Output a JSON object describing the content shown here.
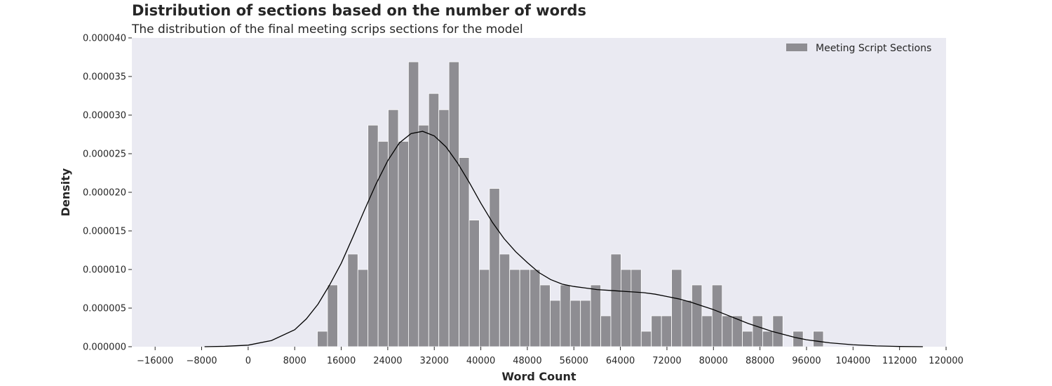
{
  "chart_data": {
    "type": "bar",
    "title": "Distribution of sections based on the number of words",
    "subtitle": "The distribution of the final meeting scrips sections for the model",
    "xlabel": "Word Count",
    "ylabel": "Density",
    "xlim": [
      -20000,
      120000
    ],
    "ylim": [
      0,
      4e-05
    ],
    "x_ticks": [
      -16000,
      -8000,
      0,
      8000,
      16000,
      24000,
      32000,
      40000,
      48000,
      56000,
      64000,
      72000,
      80000,
      88000,
      96000,
      104000,
      112000,
      120000
    ],
    "x_tick_labels": [
      "−16000",
      "−8000",
      "0",
      "8000",
      "16000",
      "24000",
      "32000",
      "40000",
      "48000",
      "56000",
      "64000",
      "72000",
      "80000",
      "88000",
      "96000",
      "104000",
      "112000",
      "120000"
    ],
    "y_ticks": [
      0,
      5e-06,
      1e-05,
      1.5e-05,
      2e-05,
      2.5e-05,
      3e-05,
      3.5e-05,
      4e-05
    ],
    "y_tick_labels": [
      "0.000000",
      "0.000005",
      "0.000010",
      "0.000015",
      "0.000020",
      "0.000025",
      "0.000030",
      "0.000035",
      "0.000040"
    ],
    "legend": {
      "position": "top-right",
      "entries": [
        {
          "label": "Meeting Script Sections",
          "color": "#8e8d92"
        }
      ]
    },
    "grid": false,
    "colors": {
      "background": "#eaeaf2",
      "bar": "#8e8d92",
      "bar_edge": "#ffffff",
      "kde_line": "#000000"
    },
    "histogram": {
      "bins": [
        {
          "x0": 11900,
          "x1": 13640,
          "density": 2e-06
        },
        {
          "x0": 13640,
          "x1": 15380,
          "density": 8e-06
        },
        {
          "x0": 17120,
          "x1": 18860,
          "density": 1.2e-05
        },
        {
          "x0": 18860,
          "x1": 20600,
          "density": 1e-05
        },
        {
          "x0": 20600,
          "x1": 22340,
          "density": 2.87e-05
        },
        {
          "x0": 22340,
          "x1": 24080,
          "density": 2.66e-05
        },
        {
          "x0": 24080,
          "x1": 25820,
          "density": 3.07e-05
        },
        {
          "x0": 25820,
          "x1": 27560,
          "density": 2.66e-05
        },
        {
          "x0": 27560,
          "x1": 29300,
          "density": 3.69e-05
        },
        {
          "x0": 29300,
          "x1": 31040,
          "density": 2.87e-05
        },
        {
          "x0": 31040,
          "x1": 32780,
          "density": 3.28e-05
        },
        {
          "x0": 32780,
          "x1": 34520,
          "density": 3.07e-05
        },
        {
          "x0": 34520,
          "x1": 36260,
          "density": 3.69e-05
        },
        {
          "x0": 36260,
          "x1": 38000,
          "density": 2.45e-05
        },
        {
          "x0": 38000,
          "x1": 39740,
          "density": 1.64e-05
        },
        {
          "x0": 39740,
          "x1": 41480,
          "density": 1e-05
        },
        {
          "x0": 41480,
          "x1": 43220,
          "density": 2.05e-05
        },
        {
          "x0": 43220,
          "x1": 44960,
          "density": 1.2e-05
        },
        {
          "x0": 44960,
          "x1": 46700,
          "density": 1e-05
        },
        {
          "x0": 46700,
          "x1": 48440,
          "density": 1e-05
        },
        {
          "x0": 48440,
          "x1": 50180,
          "density": 1e-05
        },
        {
          "x0": 50180,
          "x1": 51920,
          "density": 8e-06
        },
        {
          "x0": 51920,
          "x1": 53660,
          "density": 6e-06
        },
        {
          "x0": 53660,
          "x1": 55400,
          "density": 8e-06
        },
        {
          "x0": 55400,
          "x1": 57140,
          "density": 6e-06
        },
        {
          "x0": 57140,
          "x1": 58880,
          "density": 6e-06
        },
        {
          "x0": 58880,
          "x1": 60620,
          "density": 8e-06
        },
        {
          "x0": 60620,
          "x1": 62360,
          "density": 4e-06
        },
        {
          "x0": 62360,
          "x1": 64100,
          "density": 1.2e-05
        },
        {
          "x0": 64100,
          "x1": 65840,
          "density": 1e-05
        },
        {
          "x0": 65840,
          "x1": 67580,
          "density": 1e-05
        },
        {
          "x0": 67580,
          "x1": 69320,
          "density": 2e-06
        },
        {
          "x0": 69320,
          "x1": 71060,
          "density": 4e-06
        },
        {
          "x0": 71060,
          "x1": 72800,
          "density": 4e-06
        },
        {
          "x0": 72800,
          "x1": 74540,
          "density": 1e-05
        },
        {
          "x0": 74540,
          "x1": 76280,
          "density": 6e-06
        },
        {
          "x0": 76280,
          "x1": 78020,
          "density": 8e-06
        },
        {
          "x0": 78020,
          "x1": 79760,
          "density": 4e-06
        },
        {
          "x0": 79760,
          "x1": 81500,
          "density": 8e-06
        },
        {
          "x0": 81500,
          "x1": 83240,
          "density": 4e-06
        },
        {
          "x0": 83240,
          "x1": 84980,
          "density": 4e-06
        },
        {
          "x0": 84980,
          "x1": 86720,
          "density": 2e-06
        },
        {
          "x0": 86720,
          "x1": 88460,
          "density": 4e-06
        },
        {
          "x0": 88460,
          "x1": 90200,
          "density": 2e-06
        },
        {
          "x0": 90200,
          "x1": 91940,
          "density": 4e-06
        },
        {
          "x0": 93680,
          "x1": 95420,
          "density": 2e-06
        },
        {
          "x0": 97160,
          "x1": 98900,
          "density": 2e-06
        }
      ]
    },
    "kde": {
      "x": [
        -7500,
        -4000,
        0,
        4000,
        8000,
        10000,
        12000,
        14000,
        16000,
        18000,
        20000,
        22000,
        24000,
        26000,
        28000,
        30000,
        32000,
        34000,
        36000,
        38000,
        40000,
        42000,
        44000,
        46000,
        48000,
        50000,
        52000,
        54000,
        56000,
        58000,
        60000,
        62000,
        64000,
        66000,
        68000,
        70000,
        72000,
        74000,
        76000,
        78000,
        80000,
        82000,
        84000,
        86000,
        88000,
        90000,
        92000,
        94000,
        96000,
        98000,
        100000,
        104000,
        108000,
        112000,
        116000
      ],
      "y": [
        0,
        5e-08,
        2e-07,
        8e-07,
        2.2e-06,
        3.6e-06,
        5.5e-06,
        8e-06,
        1.08e-05,
        1.42e-05,
        1.77e-05,
        2.11e-05,
        2.41e-05,
        2.64e-05,
        2.76e-05,
        2.79e-05,
        2.73e-05,
        2.59e-05,
        2.38e-05,
        2.13e-05,
        1.86e-05,
        1.61e-05,
        1.4e-05,
        1.23e-05,
        1.09e-05,
        9.6e-06,
        8.7e-06,
        8.1e-06,
        7.8e-06,
        7.6e-06,
        7.4e-06,
        7.3e-06,
        7.2e-06,
        7.1e-06,
        7e-06,
        6.8e-06,
        6.5e-06,
        6.2e-06,
        5.8e-06,
        5.3e-06,
        4.8e-06,
        4.2e-06,
        3.6e-06,
        3e-06,
        2.5e-06,
        2e-06,
        1.6e-06,
        1.2e-06,
        9e-07,
        7e-07,
        5e-07,
        2.5e-07,
        1e-07,
        3e-08,
        0
      ]
    }
  }
}
